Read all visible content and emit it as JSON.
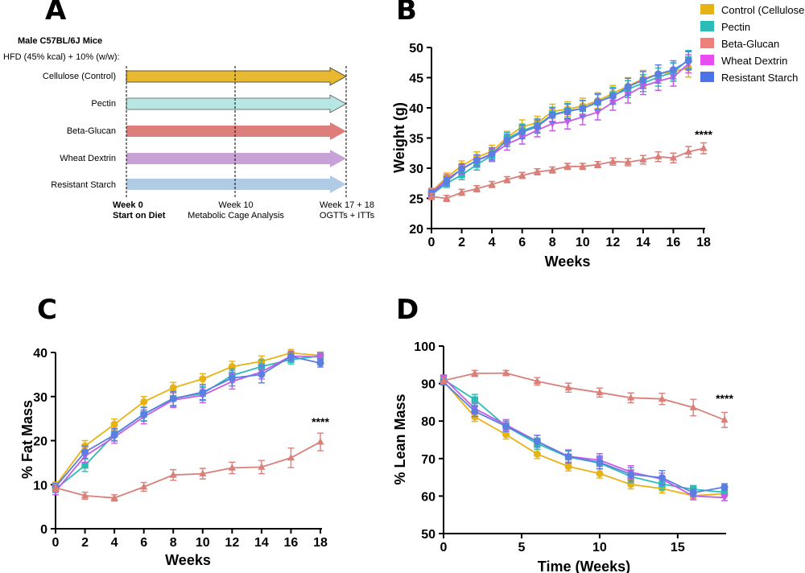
{
  "colors": {
    "control": "#E8B214",
    "pectin": "#2BBDB5",
    "beta": "#D9807A",
    "wheat": "#C75AE6",
    "resistant": "#5B7FE0",
    "arrow_control": "#E8B830",
    "arrow_pectin": "#B7E6E3",
    "arrow_beta": "#DE7E7A",
    "arrow_wheat": "#C8A2D6",
    "arrow_resistant": "#AFCBE6"
  },
  "panelA": {
    "letter": "A",
    "title": "Male C57BL/6J Mice",
    "subtitle": "HFD (45% kcal) + 10% (w/w):",
    "groups": [
      "Cellulose (Control)",
      "Pectin",
      "Beta-Glucan",
      "Wheat Dextrin",
      "Resistant Starch"
    ],
    "timeline": {
      "week0": "Week 0",
      "week0_sub": "Start on Diet",
      "week10": "Week 10",
      "week10_sub": "Metabolic Cage Analysis",
      "week17": "Week 17 + 18",
      "week17_sub": "OGTTs + ITTs"
    }
  },
  "legend": [
    "Control (Cellulose)",
    "Pectin",
    "Beta-Glucan",
    "Wheat Dextrin",
    "Resistant Starch"
  ],
  "chart_data": [
    {
      "panel": "B",
      "type": "line",
      "xlabel": "Weeks",
      "ylabel": "Weight (g)",
      "xlim": [
        0,
        18
      ],
      "ylim": [
        20,
        50
      ],
      "xticks": [
        0,
        2,
        4,
        6,
        8,
        10,
        12,
        14,
        16,
        18
      ],
      "yticks": [
        20,
        25,
        30,
        35,
        40,
        45,
        50
      ],
      "annotation": "****",
      "series": [
        {
          "name": "Control (Cellulose)",
          "marker": "circle",
          "x": [
            0,
            1,
            2,
            3,
            4,
            5,
            6,
            7,
            8,
            9,
            10,
            11,
            12,
            13,
            14,
            15,
            16,
            17
          ],
          "values": [
            26.1,
            28.5,
            30.4,
            31.8,
            32.8,
            35.1,
            36.9,
            37.5,
            39.4,
            39.8,
            40.3,
            41.2,
            42.4,
            43.6,
            44.8,
            45.6,
            46.0,
            46.6
          ],
          "err": [
            0.6,
            0.7,
            0.8,
            0.9,
            1.0,
            1.0,
            1.1,
            1.1,
            1.2,
            1.2,
            1.3,
            1.3,
            1.3,
            1.4,
            1.4,
            1.5,
            1.5,
            1.5
          ]
        },
        {
          "name": "Pectin",
          "marker": "square",
          "x": [
            0,
            1,
            2,
            3,
            4,
            5,
            6,
            7,
            8,
            9,
            10,
            11,
            12,
            13,
            14,
            15,
            16,
            17
          ],
          "values": [
            25.6,
            27.5,
            28.9,
            30.6,
            32.1,
            34.9,
            36.2,
            37.1,
            38.9,
            39.5,
            39.9,
            40.9,
            42.1,
            43.1,
            44.1,
            45.1,
            45.9,
            48.0
          ],
          "err": [
            0.6,
            0.7,
            0.8,
            0.9,
            1.0,
            1.0,
            1.1,
            1.1,
            1.2,
            1.2,
            1.3,
            1.3,
            1.3,
            1.4,
            1.4,
            1.5,
            1.5,
            1.5
          ]
        },
        {
          "name": "Beta-Glucan",
          "marker": "triangle",
          "x": [
            0,
            1,
            2,
            3,
            4,
            5,
            6,
            7,
            8,
            9,
            10,
            11,
            12,
            13,
            14,
            15,
            16,
            17,
            18
          ],
          "values": [
            25.3,
            25.0,
            26.0,
            26.6,
            27.3,
            28.1,
            28.8,
            29.4,
            29.7,
            30.3,
            30.3,
            30.6,
            31.1,
            31.0,
            31.4,
            31.9,
            31.7,
            32.7,
            33.3
          ],
          "err": [
            0.5,
            0.5,
            0.5,
            0.5,
            0.5,
            0.5,
            0.5,
            0.5,
            0.5,
            0.5,
            0.5,
            0.5,
            0.6,
            0.6,
            0.7,
            0.8,
            0.8,
            0.9,
            0.9
          ]
        },
        {
          "name": "Wheat Dextrin",
          "marker": "inverted-triangle",
          "x": [
            0,
            1,
            2,
            3,
            4,
            5,
            6,
            7,
            8,
            9,
            10,
            11,
            12,
            13,
            14,
            15,
            16,
            17
          ],
          "values": [
            25.9,
            28.2,
            29.8,
            31.3,
            32.2,
            34.0,
            35.1,
            36.3,
            37.4,
            37.7,
            38.5,
            39.3,
            40.9,
            42.2,
            43.6,
            44.4,
            45.1,
            47.3
          ],
          "err": [
            0.6,
            0.7,
            0.8,
            0.9,
            1.0,
            1.0,
            1.1,
            1.1,
            1.2,
            1.2,
            1.3,
            1.3,
            1.3,
            1.4,
            1.4,
            1.5,
            1.5,
            1.5
          ]
        },
        {
          "name": "Resistant Starch",
          "marker": "circle",
          "x": [
            0,
            1,
            2,
            3,
            4,
            5,
            6,
            7,
            8,
            9,
            10,
            11,
            12,
            13,
            14,
            15,
            16,
            17
          ],
          "values": [
            25.7,
            27.8,
            29.9,
            31.3,
            32.4,
            34.6,
            36.0,
            36.9,
            38.8,
            39.4,
            39.9,
            41.0,
            41.9,
            43.5,
            44.6,
            45.6,
            46.3,
            47.8
          ],
          "err": [
            0.6,
            0.7,
            0.8,
            0.9,
            1.0,
            1.0,
            1.1,
            1.1,
            1.2,
            1.2,
            1.3,
            1.3,
            1.3,
            1.4,
            1.4,
            1.5,
            1.5,
            1.5
          ]
        }
      ]
    },
    {
      "panel": "C",
      "type": "line",
      "xlabel": "Weeks",
      "ylabel": "% Fat Mass",
      "xlim": [
        0,
        18
      ],
      "ylim": [
        0,
        40
      ],
      "xticks": [
        0,
        2,
        4,
        6,
        8,
        10,
        12,
        14,
        16,
        18
      ],
      "yticks": [
        0,
        10,
        20,
        30,
        40
      ],
      "annotation": "****",
      "series": [
        {
          "name": "Control (Cellulose)",
          "marker": "circle",
          "x": [
            0,
            2,
            4,
            6,
            8,
            10,
            12,
            14,
            16,
            18
          ],
          "values": [
            9.8,
            18.8,
            23.7,
            28.8,
            32.0,
            34.0,
            36.8,
            38.0,
            39.9,
            39.3
          ],
          "err": [
            0.8,
            1.2,
            1.2,
            1.2,
            1.2,
            1.2,
            1.2,
            1.2,
            0.8,
            0.8
          ]
        },
        {
          "name": "Pectin",
          "marker": "square",
          "x": [
            0,
            2,
            4,
            6,
            8,
            10,
            12,
            14,
            16,
            18
          ],
          "values": [
            9.0,
            14.4,
            21.4,
            26.0,
            29.6,
            30.7,
            34.8,
            36.8,
            38.4,
            39.2
          ],
          "err": [
            0.8,
            1.4,
            1.4,
            1.5,
            1.6,
            1.6,
            1.6,
            1.5,
            1.0,
            0.8
          ]
        },
        {
          "name": "Beta-Glucan",
          "marker": "triangle",
          "x": [
            0,
            2,
            4,
            6,
            8,
            10,
            12,
            14,
            16,
            18
          ],
          "values": [
            9.3,
            7.5,
            7.0,
            9.5,
            12.2,
            12.5,
            13.8,
            14.0,
            16.1,
            19.7
          ],
          "err": [
            0.8,
            0.8,
            0.7,
            1.0,
            1.2,
            1.2,
            1.3,
            1.5,
            2.2,
            2.0
          ]
        },
        {
          "name": "Wheat Dextrin",
          "marker": "inverted-triangle",
          "x": [
            0,
            2,
            4,
            6,
            8,
            10,
            12,
            14,
            16,
            18
          ],
          "values": [
            8.5,
            16.5,
            20.8,
            25.4,
            29.2,
            30.3,
            33.4,
            35.6,
            39.2,
            39.0
          ],
          "err": [
            0.8,
            1.4,
            1.4,
            1.6,
            1.7,
            1.7,
            1.7,
            1.6,
            1.0,
            0.8
          ]
        },
        {
          "name": "Resistant Starch",
          "marker": "circle",
          "x": [
            0,
            2,
            4,
            6,
            8,
            10,
            12,
            14,
            16,
            18
          ],
          "values": [
            9.5,
            17.4,
            21.3,
            26.0,
            29.5,
            31.0,
            34.2,
            35.0,
            39.1,
            37.6
          ],
          "err": [
            0.8,
            1.4,
            1.4,
            1.6,
            1.7,
            1.7,
            1.8,
            1.9,
            1.0,
            0.9
          ]
        }
      ]
    },
    {
      "panel": "D",
      "type": "line",
      "xlabel": "Time (Weeks)",
      "ylabel": "% Lean Mass",
      "xlim": [
        0,
        18
      ],
      "ylim": [
        50,
        100
      ],
      "xticks": [
        0,
        5,
        10,
        15
      ],
      "yticks": [
        50,
        60,
        70,
        80,
        90,
        100
      ],
      "annotation": "****",
      "series": [
        {
          "name": "Control (Cellulose)",
          "marker": "circle",
          "x": [
            0,
            2,
            4,
            6,
            8,
            10,
            12,
            14,
            16,
            18
          ],
          "values": [
            90.6,
            81.1,
            76.4,
            71.2,
            67.9,
            66.0,
            63.1,
            62.0,
            60.1,
            60.6
          ],
          "err": [
            0.8,
            1.2,
            1.2,
            1.2,
            1.2,
            1.2,
            1.2,
            1.2,
            0.8,
            0.8
          ]
        },
        {
          "name": "Pectin",
          "marker": "square",
          "x": [
            0,
            2,
            4,
            6,
            8,
            10,
            12,
            14,
            16,
            18
          ],
          "values": [
            91.1,
            85.7,
            78.6,
            74.0,
            70.4,
            68.8,
            65.2,
            63.2,
            61.8,
            61.0
          ],
          "err": [
            0.8,
            1.4,
            1.4,
            1.5,
            1.6,
            1.6,
            1.6,
            1.5,
            1.0,
            0.8
          ]
        },
        {
          "name": "Beta-Glucan",
          "marker": "triangle",
          "x": [
            0,
            2,
            4,
            6,
            8,
            10,
            12,
            14,
            16,
            18
          ],
          "values": [
            90.8,
            92.7,
            92.8,
            90.6,
            88.9,
            87.6,
            86.2,
            85.9,
            83.6,
            80.3
          ],
          "err": [
            0.8,
            0.8,
            0.7,
            1.0,
            1.2,
            1.2,
            1.3,
            1.5,
            2.2,
            2.0
          ]
        },
        {
          "name": "Wheat Dextrin",
          "marker": "inverted-triangle",
          "x": [
            0,
            2,
            4,
            6,
            8,
            10,
            12,
            14,
            16,
            18
          ],
          "values": [
            91.5,
            83.3,
            79.0,
            74.6,
            70.6,
            69.6,
            66.4,
            64.5,
            60.0,
            59.6
          ],
          "err": [
            0.8,
            1.4,
            1.4,
            1.6,
            1.7,
            1.7,
            1.7,
            1.6,
            1.0,
            0.8
          ]
        },
        {
          "name": "Resistant Starch",
          "marker": "circle",
          "x": [
            0,
            2,
            4,
            6,
            8,
            10,
            12,
            14,
            16,
            18
          ],
          "values": [
            90.4,
            82.6,
            78.6,
            74.6,
            70.5,
            69.0,
            65.8,
            64.9,
            60.9,
            62.4
          ],
          "err": [
            0.8,
            1.4,
            1.4,
            1.6,
            1.7,
            1.7,
            1.8,
            1.9,
            1.0,
            0.9
          ]
        }
      ]
    }
  ]
}
